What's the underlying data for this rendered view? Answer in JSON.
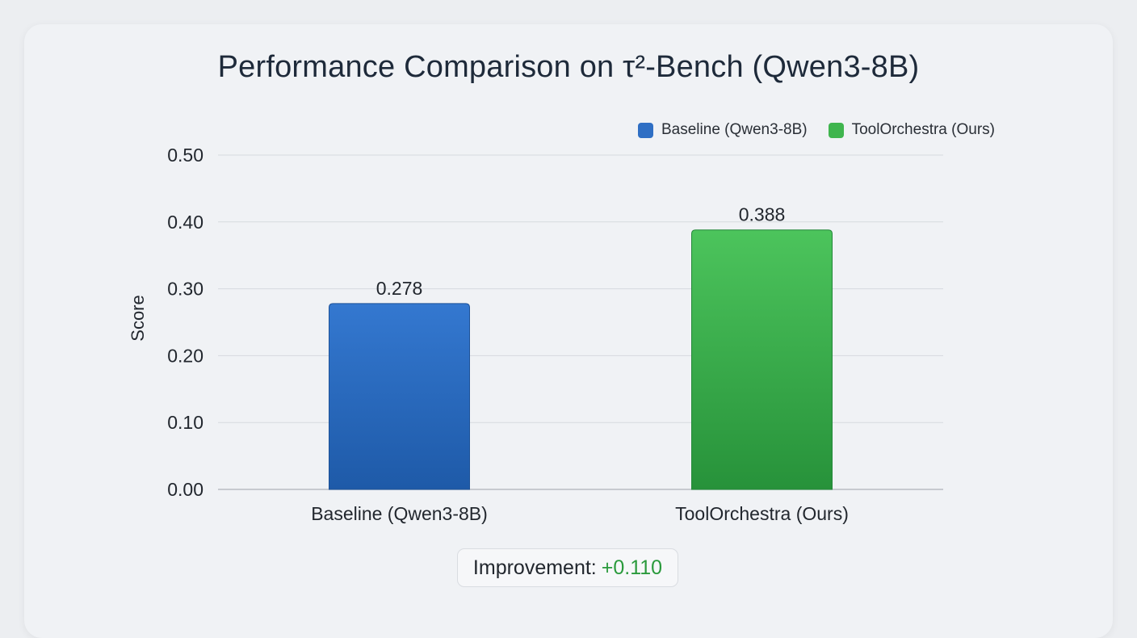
{
  "chart_data": {
    "type": "bar",
    "title": "Performance Comparison on τ²-Bench (Qwen3-8B)",
    "ylabel": "Score",
    "xlabel": "",
    "ylim": [
      0,
      0.5
    ],
    "yticks": [
      "0.00",
      "0.10",
      "0.20",
      "0.30",
      "0.40",
      "0.50"
    ],
    "grid": true,
    "legend_position": "top-right",
    "categories": [
      "Baseline (Qwen3-8B)",
      "ToolOrchestra (Ours)"
    ],
    "values": [
      0.278,
      0.388
    ],
    "value_labels": [
      "0.278",
      "0.388"
    ],
    "series": [
      {
        "name": "Baseline (Qwen3-8B)",
        "color": "#2f6fc4"
      },
      {
        "name": "ToolOrchestra (Ours)",
        "color": "#3fb54e"
      }
    ]
  },
  "improvement": {
    "label": "Improvement:",
    "value": "+0.110",
    "color": "#2a9a3c"
  }
}
